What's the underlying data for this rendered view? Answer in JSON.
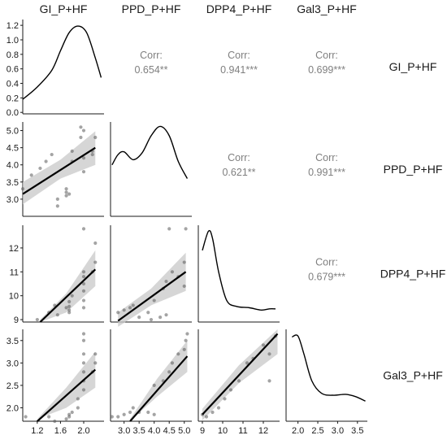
{
  "chart_data": {
    "type": "scatter-matrix",
    "variables": [
      "GI_P+HF",
      "PPD_P+HF",
      "DPP4_P+HF",
      "Gal3_P+HF"
    ],
    "x_ranges": [
      [
        0.95,
        2.35
      ],
      [
        2.55,
        5.25
      ],
      [
        8.8,
        12.8
      ],
      [
        1.7,
        3.75
      ]
    ],
    "y_ranges": [
      [
        -0.02,
        1.28
      ],
      [
        2.5,
        5.25
      ],
      [
        8.9,
        12.95
      ],
      [
        1.7,
        3.75
      ]
    ],
    "x_ticks": [
      [
        "1.2",
        "1.6",
        "2.0"
      ],
      [
        "3.0",
        "3.5",
        "4.0",
        "4.5",
        "5.0"
      ],
      [
        "9",
        "10",
        "11",
        "12"
      ],
      [
        "2.0",
        "2.5",
        "3.0",
        "3.5"
      ]
    ],
    "y_ticks": [
      [
        "0.0",
        "0.2",
        "0.4",
        "0.6",
        "0.8",
        "1.0",
        "1.2"
      ],
      [
        "3.0",
        "3.5",
        "4.0",
        "4.5",
        "5.0"
      ],
      [
        "9",
        "10",
        "11",
        "12"
      ],
      [
        "2.0",
        "2.5",
        "3.0",
        "3.5"
      ]
    ],
    "upper_panels": [
      {
        "row": 0,
        "col": 1,
        "label": "Corr:",
        "value": "0.654**"
      },
      {
        "row": 0,
        "col": 2,
        "label": "Corr:",
        "value": "0.941***"
      },
      {
        "row": 0,
        "col": 3,
        "label": "Corr:",
        "value": "0.699***"
      },
      {
        "row": 1,
        "col": 2,
        "label": "Corr:",
        "value": "0.621**"
      },
      {
        "row": 1,
        "col": 3,
        "label": "Corr:",
        "value": "0.991***"
      },
      {
        "row": 2,
        "col": 3,
        "label": "Corr:",
        "value": "0.679***"
      }
    ],
    "densities": [
      {
        "var": 0,
        "points": [
          [
            0.95,
            0.18
          ],
          [
            1.2,
            0.35
          ],
          [
            1.45,
            0.58
          ],
          [
            1.6,
            0.85
          ],
          [
            1.75,
            1.1
          ],
          [
            1.9,
            1.19
          ],
          [
            2.05,
            1.1
          ],
          [
            2.2,
            0.75
          ],
          [
            2.3,
            0.48
          ]
        ]
      },
      {
        "var": 1,
        "points": [
          [
            2.6,
            4.0
          ],
          [
            2.8,
            4.3
          ],
          [
            3.0,
            4.38
          ],
          [
            3.3,
            4.15
          ],
          [
            3.6,
            4.35
          ],
          [
            3.9,
            4.85
          ],
          [
            4.2,
            5.12
          ],
          [
            4.5,
            4.85
          ],
          [
            4.8,
            4.1
          ],
          [
            5.1,
            3.6
          ]
        ]
      },
      {
        "var": 2,
        "points": [
          [
            9.0,
            11.9
          ],
          [
            9.3,
            12.7
          ],
          [
            9.5,
            12.4
          ],
          [
            9.8,
            11.0
          ],
          [
            10.2,
            9.8
          ],
          [
            10.7,
            9.55
          ],
          [
            11.3,
            9.5
          ],
          [
            11.9,
            9.4
          ],
          [
            12.3,
            9.45
          ],
          [
            12.6,
            9.45
          ]
        ]
      },
      {
        "var": 3,
        "points": [
          [
            1.85,
            3.58
          ],
          [
            2.0,
            3.6
          ],
          [
            2.15,
            3.2
          ],
          [
            2.35,
            2.6
          ],
          [
            2.6,
            2.32
          ],
          [
            2.9,
            2.28
          ],
          [
            3.2,
            2.3
          ],
          [
            3.45,
            2.25
          ],
          [
            3.7,
            2.15
          ]
        ]
      }
    ],
    "scatter_panels": [
      {
        "row": 1,
        "col": 0,
        "points": [
          [
            0.95,
            3.3
          ],
          [
            1.1,
            3.7
          ],
          [
            1.25,
            3.9
          ],
          [
            1.35,
            4.1
          ],
          [
            1.45,
            4.3
          ],
          [
            1.55,
            2.8
          ],
          [
            1.55,
            3.0
          ],
          [
            1.7,
            3.3
          ],
          [
            1.7,
            3.2
          ],
          [
            1.7,
            3.1
          ],
          [
            1.75,
            3.15
          ],
          [
            1.8,
            4.1
          ],
          [
            1.8,
            4.4
          ],
          [
            1.95,
            4.8
          ],
          [
            1.95,
            5.1
          ],
          [
            2.0,
            5.0
          ],
          [
            2.0,
            4.2
          ],
          [
            2.0,
            3.8
          ],
          [
            2.15,
            4.3
          ],
          [
            2.15,
            4.4
          ],
          [
            2.2,
            4.8
          ]
        ],
        "fit": [
          [
            0.95,
            3.15
          ],
          [
            2.2,
            4.5
          ]
        ],
        "band": [
          [
            0.95,
            2.85
          ],
          [
            1.6,
            3.6
          ],
          [
            2.2,
            4.0
          ],
          [
            2.2,
            4.98
          ],
          [
            1.6,
            4.15
          ],
          [
            0.95,
            3.5
          ]
        ]
      },
      {
        "row": 2,
        "col": 0,
        "points": [
          [
            1.2,
            9.0
          ],
          [
            1.4,
            9.3
          ],
          [
            1.5,
            9.6
          ],
          [
            1.55,
            9.2
          ],
          [
            1.7,
            9.5
          ],
          [
            1.75,
            9.3
          ],
          [
            1.75,
            9.4
          ],
          [
            1.75,
            9.55
          ],
          [
            1.75,
            9.75
          ],
          [
            1.8,
            10.0
          ],
          [
            2.0,
            9.5
          ],
          [
            2.0,
            9.8
          ],
          [
            2.0,
            10.2
          ],
          [
            2.0,
            10.5
          ],
          [
            2.0,
            10.8
          ],
          [
            2.0,
            11.0
          ],
          [
            2.0,
            12.8
          ],
          [
            2.15,
            11.0
          ],
          [
            2.2,
            11.4
          ],
          [
            2.2,
            12.2
          ]
        ],
        "fit": [
          [
            1.25,
            8.9
          ],
          [
            2.2,
            11.1
          ]
        ],
        "band": [
          [
            1.25,
            8.9
          ],
          [
            1.7,
            9.3
          ],
          [
            2.2,
            10.4
          ],
          [
            2.2,
            11.9
          ],
          [
            1.7,
            10.1
          ],
          [
            1.25,
            9.0
          ]
        ]
      },
      {
        "row": 2,
        "col": 1,
        "points": [
          [
            2.8,
            9.3
          ],
          [
            3.0,
            9.4
          ],
          [
            3.2,
            9.5
          ],
          [
            3.3,
            9.6
          ],
          [
            3.5,
            9.1
          ],
          [
            3.8,
            9.3
          ],
          [
            3.9,
            9.0
          ],
          [
            4.0,
            9.8
          ],
          [
            4.2,
            9.1
          ],
          [
            4.4,
            9.2
          ],
          [
            4.3,
            10.3
          ],
          [
            4.4,
            10.6
          ],
          [
            4.5,
            12.8
          ],
          [
            4.6,
            11.0
          ],
          [
            4.8,
            10.8
          ],
          [
            5.0,
            10.4
          ],
          [
            5.0,
            11.4
          ],
          [
            5.05,
            12.8
          ]
        ],
        "fit": [
          [
            2.8,
            8.95
          ],
          [
            5.05,
            11.0
          ]
        ],
        "band": [
          [
            2.8,
            8.7
          ],
          [
            3.9,
            9.6
          ],
          [
            5.05,
            10.2
          ],
          [
            5.05,
            11.8
          ],
          [
            3.9,
            10.3
          ],
          [
            2.8,
            9.3
          ]
        ]
      },
      {
        "row": 3,
        "col": 0,
        "points": [
          [
            1.0,
            1.8
          ],
          [
            1.4,
            1.8
          ],
          [
            1.5,
            1.7
          ],
          [
            1.7,
            1.75
          ],
          [
            1.75,
            1.8
          ],
          [
            1.75,
            1.85
          ],
          [
            1.8,
            1.9
          ],
          [
            1.9,
            2.0
          ],
          [
            1.9,
            2.2
          ],
          [
            2.0,
            2.4
          ],
          [
            2.0,
            2.6
          ],
          [
            2.0,
            2.8
          ],
          [
            2.0,
            3.0
          ],
          [
            2.0,
            3.2
          ],
          [
            2.0,
            3.5
          ],
          [
            2.0,
            3.65
          ],
          [
            2.15,
            2.8
          ],
          [
            2.2,
            3.0
          ],
          [
            2.2,
            3.2
          ]
        ],
        "fit": [
          [
            1.2,
            1.7
          ],
          [
            2.2,
            2.85
          ]
        ],
        "band": [
          [
            1.2,
            1.75
          ],
          [
            1.7,
            2.0
          ],
          [
            2.2,
            2.45
          ],
          [
            2.2,
            3.25
          ],
          [
            1.7,
            2.45
          ],
          [
            1.2,
            1.75
          ]
        ]
      },
      {
        "row": 3,
        "col": 1,
        "points": [
          [
            2.6,
            1.8
          ],
          [
            2.8,
            1.8
          ],
          [
            3.0,
            1.85
          ],
          [
            3.2,
            1.9
          ],
          [
            3.3,
            2.0
          ],
          [
            3.5,
            1.9
          ],
          [
            3.8,
            1.9
          ],
          [
            4.0,
            1.85
          ],
          [
            4.0,
            2.5
          ],
          [
            4.3,
            2.6
          ],
          [
            4.5,
            2.8
          ],
          [
            4.6,
            3.0
          ],
          [
            4.8,
            3.2
          ],
          [
            5.0,
            3.3
          ],
          [
            5.05,
            3.5
          ],
          [
            5.1,
            3.65
          ]
        ],
        "fit": [
          [
            3.2,
            1.7
          ],
          [
            5.1,
            3.15
          ]
        ],
        "band": [
          [
            3.2,
            1.7
          ],
          [
            4.1,
            2.25
          ],
          [
            5.1,
            2.8
          ],
          [
            5.1,
            3.5
          ],
          [
            4.1,
            2.65
          ],
          [
            3.2,
            1.75
          ]
        ]
      },
      {
        "row": 3,
        "col": 2,
        "points": [
          [
            9.0,
            1.85
          ],
          [
            9.2,
            1.8
          ],
          [
            9.5,
            1.9
          ],
          [
            9.8,
            2.0
          ],
          [
            10.1,
            2.2
          ],
          [
            10.4,
            2.4
          ],
          [
            10.8,
            2.6
          ],
          [
            11.2,
            3.0
          ],
          [
            11.5,
            3.1
          ],
          [
            12.0,
            3.4
          ],
          [
            12.3,
            3.2
          ],
          [
            12.3,
            2.6
          ],
          [
            12.6,
            3.6
          ]
        ],
        "fit": [
          [
            9.0,
            1.85
          ],
          [
            12.7,
            3.65
          ]
        ],
        "band": [
          [
            9.0,
            1.72
          ],
          [
            10.8,
            2.55
          ],
          [
            12.7,
            3.2
          ],
          [
            12.7,
            3.75
          ],
          [
            10.8,
            2.95
          ],
          [
            9.0,
            1.98
          ]
        ]
      }
    ],
    "colors": {
      "fit": "#000000",
      "band": "#c8c8c8",
      "point": "#595959",
      "axis": "#1a1a1a",
      "corr_text": "#7f7f7f"
    }
  }
}
